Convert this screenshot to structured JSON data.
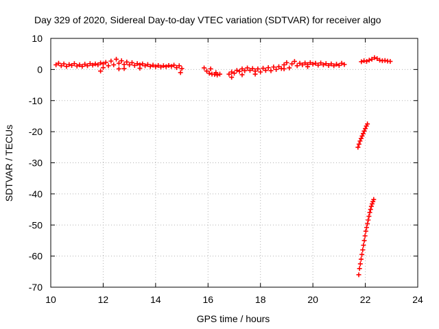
{
  "chart_data": {
    "type": "scatter",
    "title": "Day 329 of 2020, Sidereal Day-to-day VTEC variation (SDTVAR) for receiver algo",
    "xlabel": "GPS time / hours",
    "ylabel": "SDTVAR / TECUs",
    "xlim": [
      10,
      24
    ],
    "ylim": [
      -70,
      10
    ],
    "xticks": [
      "10",
      "12",
      "14",
      "16",
      "18",
      "20",
      "22",
      "24"
    ],
    "yticks": [
      "10",
      "0",
      "-10",
      "-20",
      "-30",
      "-40",
      "-50",
      "-60",
      "-70"
    ],
    "grid": true,
    "marker": "+",
    "color": "#ff0000",
    "series": [
      {
        "points": [
          [
            10.2,
            1.5
          ],
          [
            10.3,
            2.0
          ],
          [
            10.4,
            1.2
          ],
          [
            10.5,
            1.8
          ],
          [
            10.6,
            1.0
          ],
          [
            10.7,
            1.6
          ],
          [
            10.8,
            1.3
          ],
          [
            10.9,
            1.9
          ],
          [
            11.0,
            1.1
          ],
          [
            11.1,
            1.5
          ],
          [
            11.2,
            1.0
          ],
          [
            11.3,
            1.7
          ],
          [
            11.4,
            1.2
          ],
          [
            11.5,
            1.9
          ],
          [
            11.6,
            1.4
          ],
          [
            11.7,
            1.8
          ],
          [
            11.8,
            1.5
          ],
          [
            11.9,
            2.1
          ],
          [
            12.0,
            1.8
          ],
          [
            12.1,
            2.3
          ],
          [
            12.2,
            1.2
          ],
          [
            12.3,
            2.7
          ],
          [
            12.4,
            1.5
          ],
          [
            12.5,
            3.3
          ],
          [
            12.6,
            2.0
          ],
          [
            12.7,
            2.8
          ],
          [
            12.8,
            1.6
          ],
          [
            12.9,
            2.4
          ],
          [
            13.0,
            1.5
          ],
          [
            13.1,
            2.2
          ],
          [
            13.2,
            1.3
          ],
          [
            13.3,
            1.9
          ],
          [
            13.4,
            1.5
          ],
          [
            13.5,
            1.8
          ],
          [
            13.6,
            1.2
          ],
          [
            13.7,
            1.6
          ],
          [
            13.8,
            1.0
          ],
          [
            13.9,
            1.4
          ],
          [
            14.0,
            0.9
          ],
          [
            14.1,
            1.3
          ],
          [
            14.2,
            0.8
          ],
          [
            14.3,
            1.2
          ],
          [
            14.4,
            0.9
          ],
          [
            14.5,
            1.3
          ],
          [
            14.6,
            1.0
          ],
          [
            14.7,
            1.4
          ],
          [
            14.8,
            0.6
          ],
          [
            14.9,
            1.2
          ],
          [
            14.95,
            -1.0
          ],
          [
            15.0,
            0.3
          ],
          [
            12.0,
            0.6
          ],
          [
            12.6,
            0.2
          ],
          [
            13.4,
            0.4
          ],
          [
            11.9,
            -0.5
          ],
          [
            12.8,
            0.3
          ],
          [
            15.85,
            0.5
          ],
          [
            15.95,
            -0.5
          ],
          [
            16.05,
            -1.2
          ],
          [
            16.15,
            -1.5
          ],
          [
            16.25,
            -1.6
          ],
          [
            16.35,
            -1.8
          ],
          [
            16.45,
            -1.5
          ],
          [
            16.1,
            0.2
          ],
          [
            16.3,
            -1.0
          ],
          [
            16.8,
            -1.5
          ],
          [
            16.9,
            -0.8
          ],
          [
            17.0,
            -1.2
          ],
          [
            17.1,
            -0.3
          ],
          [
            17.2,
            -0.6
          ],
          [
            17.3,
            0.2
          ],
          [
            17.4,
            -0.4
          ],
          [
            17.5,
            0.5
          ],
          [
            17.6,
            -0.3
          ],
          [
            17.7,
            0.3
          ],
          [
            17.8,
            -0.5
          ],
          [
            17.9,
            0.2
          ],
          [
            18.0,
            -0.8
          ],
          [
            18.1,
            0.4
          ],
          [
            18.2,
            -0.3
          ],
          [
            18.3,
            0.6
          ],
          [
            18.4,
            -0.4
          ],
          [
            18.5,
            0.8
          ],
          [
            18.6,
            0.0
          ],
          [
            18.7,
            0.9
          ],
          [
            18.8,
            0.3
          ],
          [
            18.9,
            1.5
          ],
          [
            19.0,
            2.2
          ],
          [
            19.1,
            0.5
          ],
          [
            19.2,
            1.8
          ],
          [
            19.3,
            2.6
          ],
          [
            19.4,
            1.2
          ],
          [
            19.5,
            2.0
          ],
          [
            19.6,
            1.5
          ],
          [
            19.7,
            2.1
          ],
          [
            19.8,
            1.6
          ],
          [
            19.9,
            2.2
          ],
          [
            20.0,
            1.7
          ],
          [
            20.1,
            2.0
          ],
          [
            20.2,
            1.4
          ],
          [
            20.3,
            2.1
          ],
          [
            20.4,
            1.5
          ],
          [
            20.5,
            1.9
          ],
          [
            20.6,
            1.3
          ],
          [
            20.7,
            1.8
          ],
          [
            20.8,
            1.2
          ],
          [
            20.9,
            1.7
          ],
          [
            21.0,
            1.3
          ],
          [
            21.1,
            2.0
          ],
          [
            21.2,
            1.6
          ],
          [
            16.9,
            -2.5
          ],
          [
            17.3,
            -1.7
          ],
          [
            17.8,
            -1.5
          ],
          [
            18.9,
            0.2
          ],
          [
            19.8,
            0.9
          ],
          [
            21.85,
            2.5
          ],
          [
            21.95,
            2.8
          ],
          [
            22.05,
            2.6
          ],
          [
            22.15,
            3.0
          ],
          [
            22.25,
            3.3
          ],
          [
            22.35,
            3.8
          ],
          [
            22.45,
            3.5
          ],
          [
            22.55,
            3.0
          ],
          [
            22.65,
            2.8
          ],
          [
            22.75,
            2.9
          ],
          [
            22.85,
            2.7
          ],
          [
            22.95,
            2.6
          ],
          [
            21.72,
            -25.0
          ],
          [
            21.76,
            -24.0
          ],
          [
            21.8,
            -23.0
          ],
          [
            21.84,
            -22.2
          ],
          [
            21.88,
            -21.4
          ],
          [
            21.92,
            -20.6
          ],
          [
            21.96,
            -19.8
          ],
          [
            22.0,
            -19.0
          ],
          [
            22.04,
            -18.2
          ],
          [
            22.08,
            -17.5
          ],
          [
            21.75,
            -66.0
          ],
          [
            21.78,
            -64.0
          ],
          [
            21.81,
            -62.5
          ],
          [
            21.84,
            -61.0
          ],
          [
            21.87,
            -59.5
          ],
          [
            21.9,
            -58.0
          ],
          [
            21.93,
            -56.5
          ],
          [
            21.96,
            -55.0
          ],
          [
            21.99,
            -53.5
          ],
          [
            22.02,
            -52.0
          ],
          [
            22.05,
            -50.8
          ],
          [
            22.08,
            -49.6
          ],
          [
            22.11,
            -48.4
          ],
          [
            22.14,
            -47.2
          ],
          [
            22.17,
            -46.0
          ],
          [
            22.2,
            -45.0
          ],
          [
            22.23,
            -44.0
          ],
          [
            22.26,
            -43.2
          ],
          [
            22.29,
            -42.5
          ],
          [
            22.32,
            -41.8
          ]
        ]
      }
    ]
  }
}
